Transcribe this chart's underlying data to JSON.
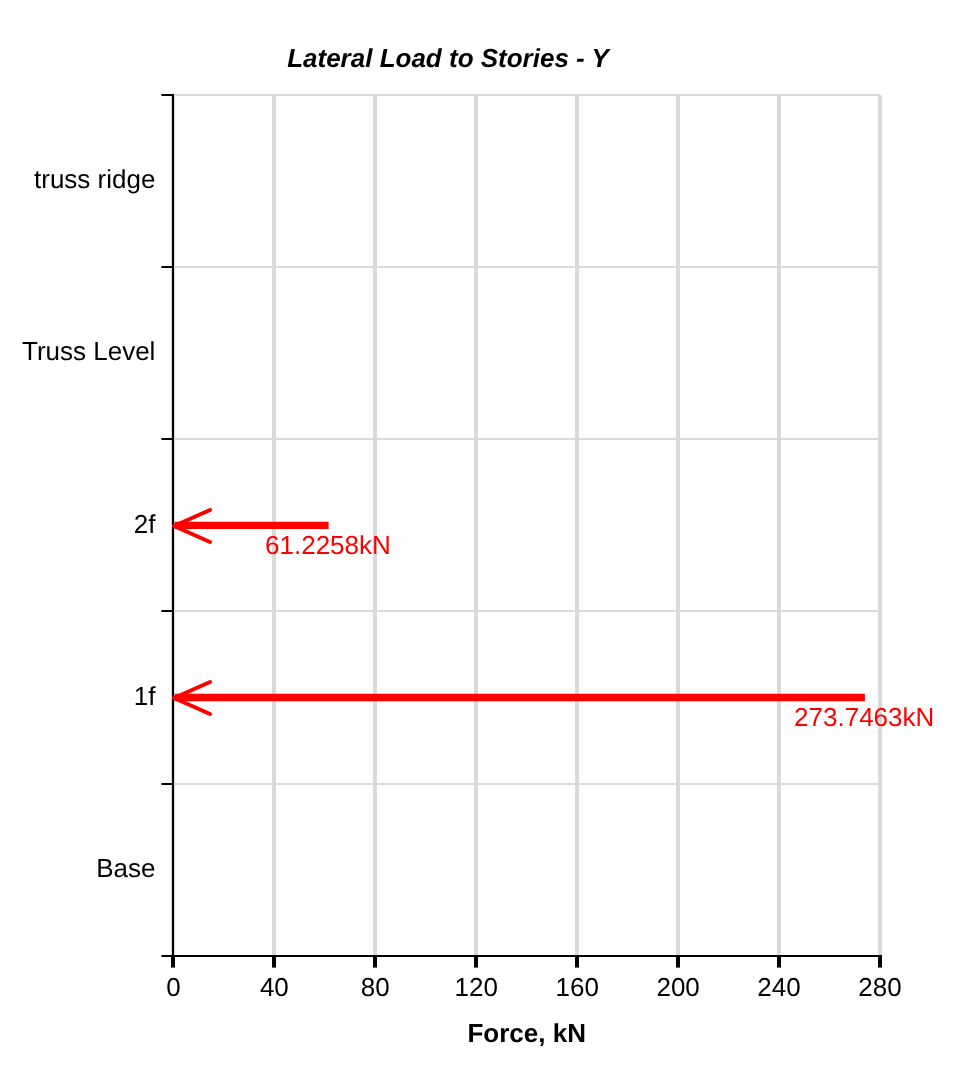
{
  "chart_data": {
    "type": "bar",
    "orientation": "horizontal",
    "title": "Lateral Load to Stories - Y",
    "xlabel": "Force, kN",
    "categories": [
      "truss ridge",
      "Truss Level",
      "2f",
      "1f",
      "Base"
    ],
    "values": [
      null,
      null,
      61.2258,
      273.7463,
      null
    ],
    "value_labels": [
      null,
      null,
      "61.2258kN",
      "273.7463kN",
      null
    ],
    "color": "#ff0000",
    "xlim": [
      0,
      280
    ],
    "xticks": [
      0,
      40,
      80,
      120,
      160,
      200,
      240,
      280
    ],
    "grid": true,
    "legend": false
  }
}
